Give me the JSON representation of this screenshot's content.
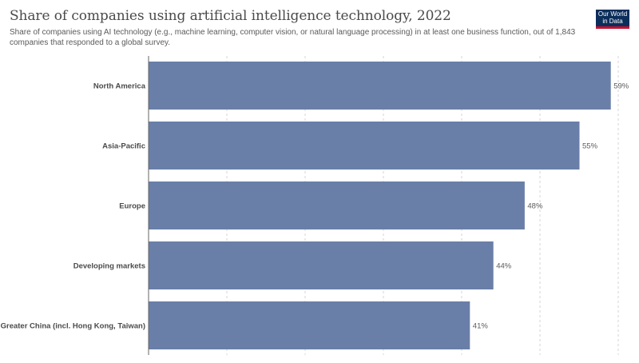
{
  "header": {
    "title": "Share of companies using artificial intelligence technology, 2022",
    "subtitle": "Share of companies using AI technology (e.g., machine learning, computer vision, or natural language processing) in at least one business function, out of 1,843 companies that responded to a global survey."
  },
  "logo": {
    "line1": "Our World",
    "line2": "in Data"
  },
  "colors": {
    "bar": "#6a7fa8",
    "grid": "#d6d6d6",
    "axis": "#666666"
  },
  "chart_data": {
    "type": "bar",
    "orientation": "horizontal",
    "categories": [
      "North America",
      "Asia-Pacific",
      "Europe",
      "Developing markets",
      "Greater China (incl. Hong Kong, Taiwan)"
    ],
    "values": [
      59,
      55,
      48,
      44,
      41
    ],
    "value_labels": [
      "59%",
      "55%",
      "48%",
      "44%",
      "41%"
    ],
    "unit": "%",
    "xlim": [
      0,
      60
    ],
    "grid": true
  }
}
